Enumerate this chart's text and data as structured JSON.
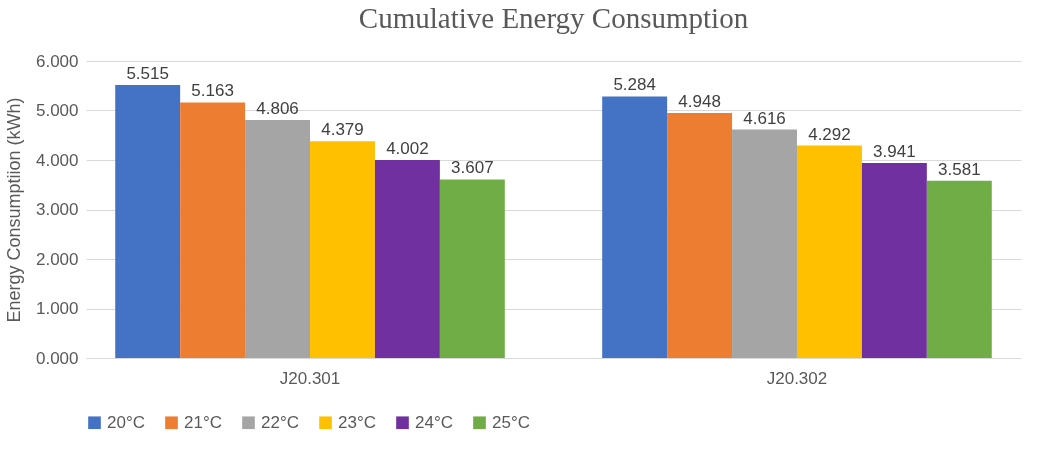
{
  "chart_data": {
    "type": "bar",
    "title": "Cumulative Energy Consumption",
    "ylabel": "Energy Consumptiion (kWh)",
    "categories": [
      "J20.301",
      "J20.302"
    ],
    "series": [
      {
        "name": "20°C",
        "color": "#4472c4",
        "values": [
          5.515,
          5.284
        ]
      },
      {
        "name": "21°C",
        "color": "#ed7d31",
        "values": [
          5.163,
          4.948
        ]
      },
      {
        "name": "22°C",
        "color": "#a5a5a5",
        "values": [
          4.806,
          4.616
        ]
      },
      {
        "name": "23°C",
        "color": "#ffc000",
        "values": [
          4.379,
          4.292
        ]
      },
      {
        "name": "24°C",
        "color": "#7030a0",
        "values": [
          4.002,
          3.941
        ]
      },
      {
        "name": "25°C",
        "color": "#70ad47",
        "values": [
          3.607,
          3.581
        ]
      }
    ],
    "ylim": [
      0,
      6
    ],
    "yticks": [
      {
        "value": 0,
        "label": "0.000"
      },
      {
        "value": 1,
        "label": "1.000"
      },
      {
        "value": 2,
        "label": "2.000"
      },
      {
        "value": 3,
        "label": "3.000"
      },
      {
        "value": 4,
        "label": "4.000"
      },
      {
        "value": 5,
        "label": "5.000"
      },
      {
        "value": 6,
        "label": "6.000"
      }
    ],
    "grid": "y",
    "legend": "bottom",
    "data_labels": true
  }
}
